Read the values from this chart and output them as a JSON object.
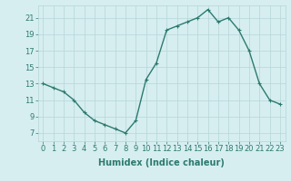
{
  "x": [
    0,
    1,
    2,
    3,
    4,
    5,
    6,
    7,
    8,
    9,
    10,
    11,
    12,
    13,
    14,
    15,
    16,
    17,
    18,
    19,
    20,
    21,
    22,
    23
  ],
  "y": [
    13,
    12.5,
    12,
    11,
    9.5,
    8.5,
    8,
    7.5,
    7,
    8.5,
    13.5,
    15.5,
    19.5,
    20,
    20.5,
    21,
    22,
    20.5,
    21,
    19.5,
    17,
    13,
    11,
    10.5
  ],
  "line_color": "#2d7a6e",
  "marker": "+",
  "marker_size": 3,
  "bg_color": "#d6eef0",
  "grid_color": "#b5d5d8",
  "xlabel": "Humidex (Indice chaleur)",
  "xlim": [
    -0.5,
    23.5
  ],
  "ylim": [
    6,
    22.5
  ],
  "yticks": [
    7,
    9,
    11,
    13,
    15,
    17,
    19,
    21
  ],
  "xticks": [
    0,
    1,
    2,
    3,
    4,
    5,
    6,
    7,
    8,
    9,
    10,
    11,
    12,
    13,
    14,
    15,
    16,
    17,
    18,
    19,
    20,
    21,
    22,
    23
  ],
  "tick_color": "#2d7a6e",
  "label_color": "#2d7a6e",
  "xlabel_fontsize": 7,
  "tick_fontsize": 6,
  "line_width": 1.0,
  "marker_edge_width": 0.8
}
